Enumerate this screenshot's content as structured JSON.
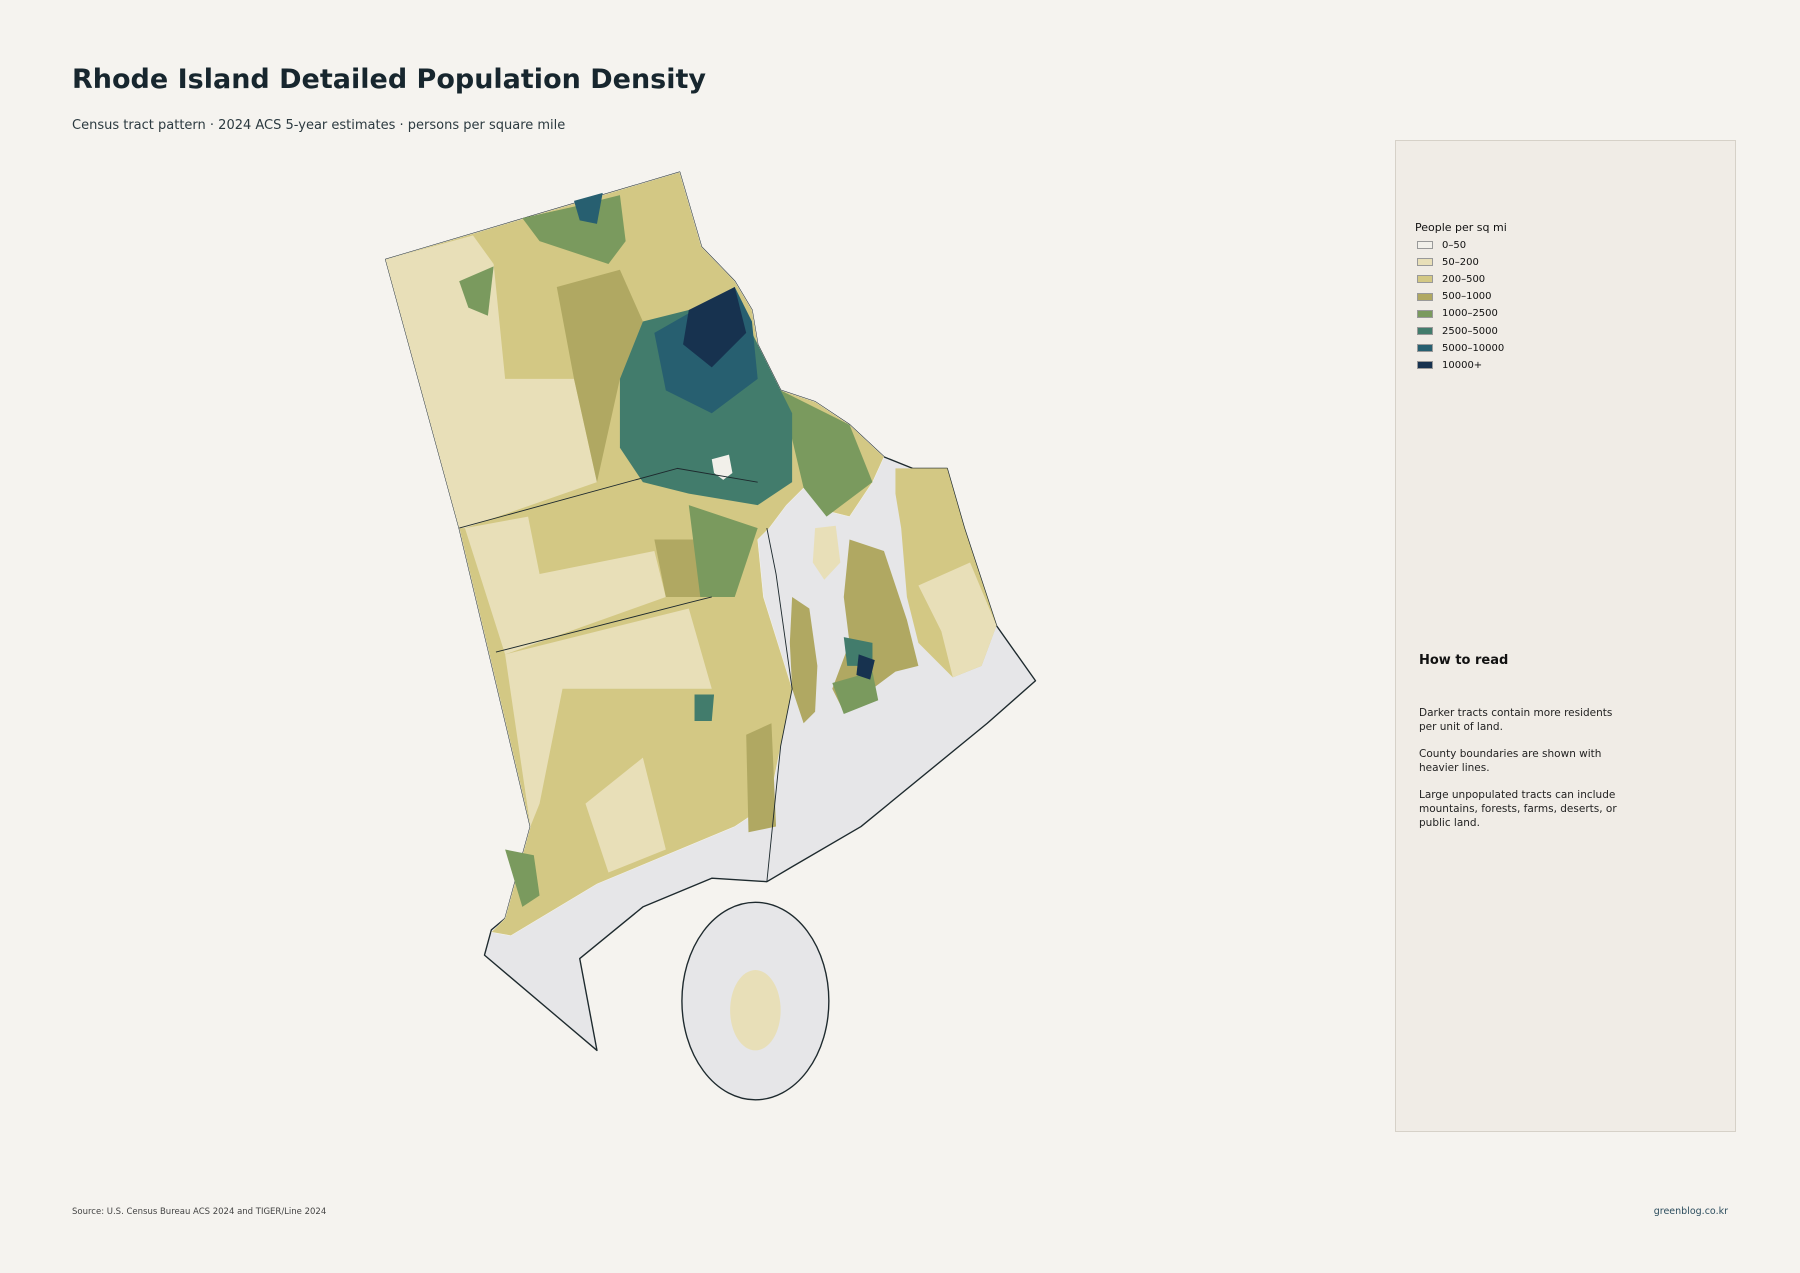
{
  "header": {
    "title": "Rhode Island Detailed Population Density",
    "subtitle": "Census tract pattern · 2024 ACS 5-year estimates · persons per square mile"
  },
  "legend": {
    "title": "People per sq mi",
    "items": [
      {
        "label": "0–50",
        "color": "#f2f0ea"
      },
      {
        "label": "50–200",
        "color": "#e8dfb8"
      },
      {
        "label": "200–500",
        "color": "#d3c884"
      },
      {
        "label": "500–1000",
        "color": "#b0a862"
      },
      {
        "label": "1000–2500",
        "color": "#7a9a5e"
      },
      {
        "label": "2500–5000",
        "color": "#427c6c"
      },
      {
        "label": "5000–10000",
        "color": "#275f70"
      },
      {
        "label": "10000+",
        "color": "#17324f"
      }
    ]
  },
  "how_to_read": {
    "title": "How to read",
    "paragraphs": [
      "Darker tracts contain more residents per unit of land.",
      "County boundaries are shown with heavier lines.",
      "Large unpopulated tracts can include mountains, forests, farms, deserts, or public land."
    ]
  },
  "footer": {
    "source": "Source: U.S. Census Bureau ACS 2024 and TIGER/Line 2024",
    "credit": "greenblog.co.kr"
  }
}
